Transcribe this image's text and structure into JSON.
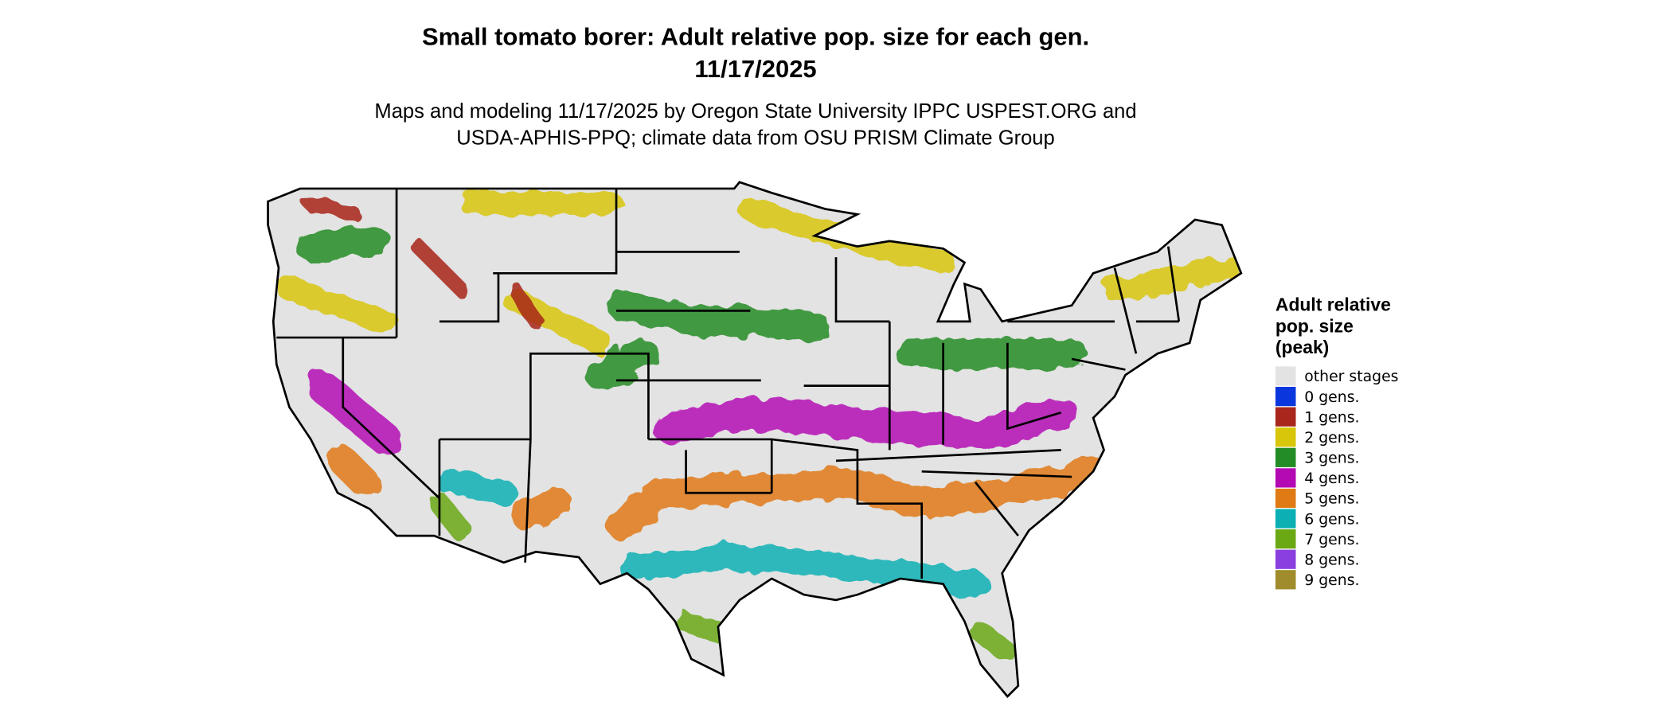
{
  "header": {
    "title": [
      "Small tomato borer: Adult relative pop. size for each gen.",
      "11/17/2025"
    ],
    "subtitle": [
      "Maps and modeling 11/17/2025 by Oregon State University IPPC USPEST.ORG and",
      "USDA-APHIS-PPQ; climate data from OSU PRISM Climate Group"
    ]
  },
  "legend": {
    "title": [
      "Adult relative",
      "pop. size",
      "(peak)"
    ],
    "items": [
      {
        "label": "other stages",
        "color": "#e3e3e3"
      },
      {
        "label": "0 gens.",
        "color": "#0a37dd"
      },
      {
        "label": "1 gens.",
        "color": "#a8261b"
      },
      {
        "label": "2 gens.",
        "color": "#d8c60a"
      },
      {
        "label": "3 gens.",
        "color": "#248c26"
      },
      {
        "label": "4 gens.",
        "color": "#b40ab4"
      },
      {
        "label": "5 gens.",
        "color": "#e07a14"
      },
      {
        "label": "6 gens.",
        "color": "#0cb0b4"
      },
      {
        "label": "7 gens.",
        "color": "#6aa814"
      },
      {
        "label": "8 gens.",
        "color": "#8a40e0"
      },
      {
        "label": "9 gens.",
        "color": "#a08c2c"
      }
    ]
  }
}
